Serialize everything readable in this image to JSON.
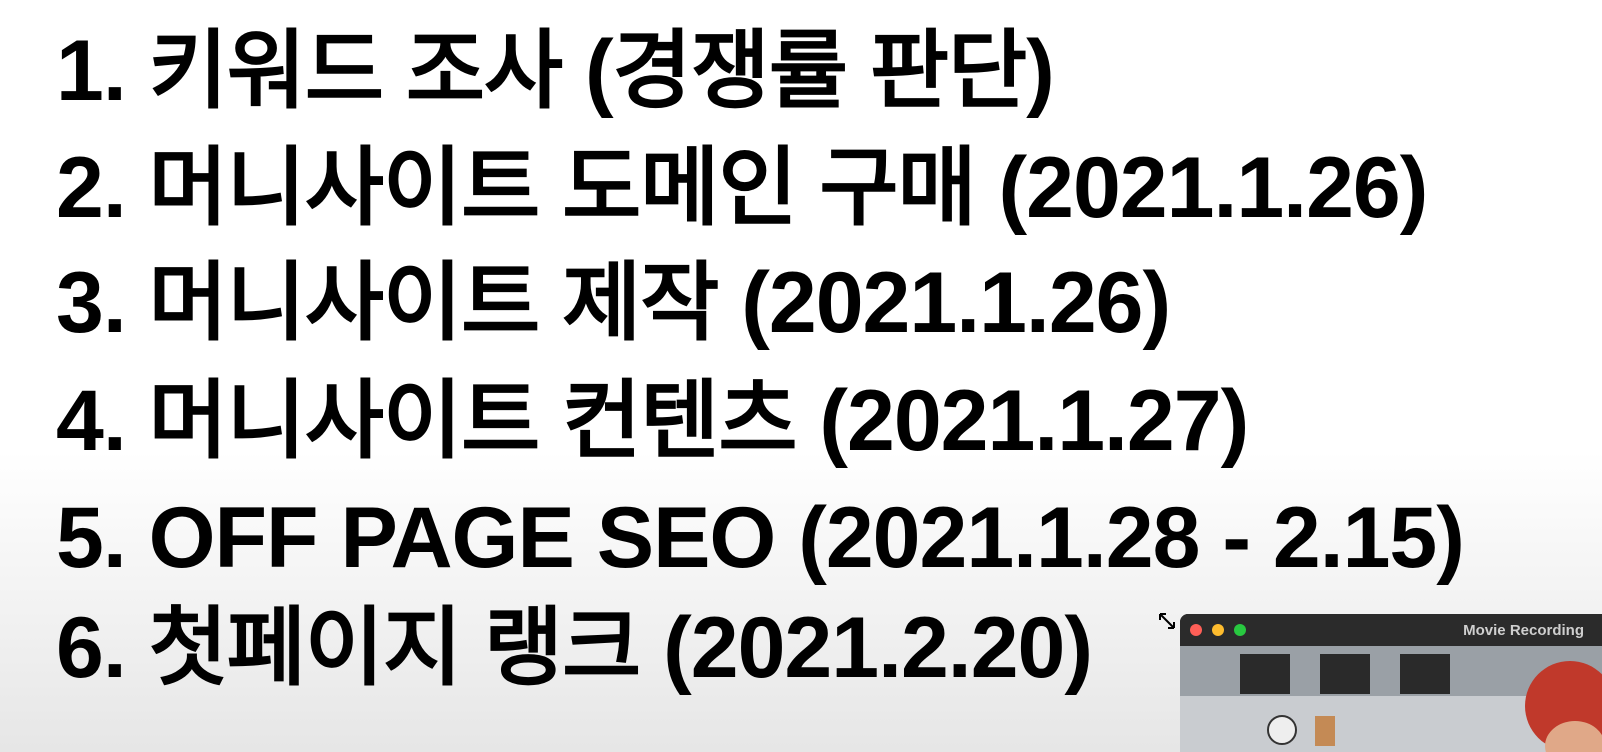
{
  "list": {
    "items": [
      "1. 키워드 조사 (경쟁률 판단)",
      "2. 머니사이트 도메인 구매 (2021.1.26)",
      "3. 머니사이트 제작 (2021.1.26)",
      "4. 머니사이트 컨텐츠 (2021.1.27)",
      "5. OFF PAGE SEO (2021.1.28 - 2.15)",
      "6. 첫페이지 랭크 (2021.2.20)"
    ]
  },
  "recording_window": {
    "title": "Movie Recording"
  }
}
